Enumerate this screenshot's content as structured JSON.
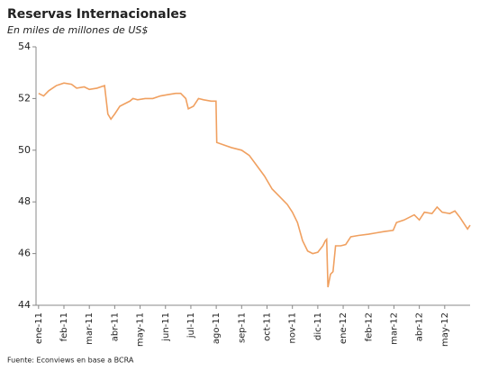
{
  "chart_data": {
    "type": "line",
    "title": "Reservas Internacionales",
    "subtitle": "En miles de millones de US$",
    "source": "Fuente: Econviews en base a BCRA",
    "x": [
      0,
      0.2,
      0.4,
      0.7,
      1.0,
      1.3,
      1.5,
      1.8,
      2.0,
      2.3,
      2.6,
      2.73,
      2.85,
      3.0,
      3.2,
      3.4,
      3.6,
      3.72,
      3.9,
      4.2,
      4.5,
      4.8,
      5.1,
      5.4,
      5.6,
      5.8,
      5.9,
      6.1,
      6.3,
      6.5,
      6.8,
      6.99,
      7.02,
      7.3,
      7.6,
      8.0,
      8.3,
      8.6,
      8.9,
      9.2,
      9.5,
      9.8,
      10.0,
      10.2,
      10.4,
      10.6,
      10.8,
      11.0,
      11.2,
      11.3,
      11.35,
      11.4,
      11.5,
      11.6,
      11.7,
      11.9,
      12.1,
      12.3,
      12.6,
      13.0,
      13.3,
      13.6,
      13.97,
      14.1,
      14.4,
      14.8,
      15.0,
      15.2,
      15.5,
      15.7,
      15.9,
      16.2,
      16.4,
      16.6,
      16.8,
      16.9,
      17.0
    ],
    "series": [
      {
        "name": "Reservas",
        "color": "#f0a060",
        "values": [
          52.2,
          52.1,
          52.3,
          52.5,
          52.6,
          52.55,
          52.4,
          52.45,
          52.35,
          52.4,
          52.5,
          51.4,
          51.2,
          51.4,
          51.7,
          51.8,
          51.9,
          52.0,
          51.95,
          52.0,
          52.0,
          52.1,
          52.15,
          52.2,
          52.2,
          52.0,
          51.6,
          51.7,
          52.0,
          51.95,
          51.9,
          51.9,
          50.3,
          50.2,
          50.1,
          50.0,
          49.8,
          49.4,
          49.0,
          48.5,
          48.2,
          47.9,
          47.6,
          47.2,
          46.5,
          46.1,
          46.0,
          46.05,
          46.3,
          46.5,
          46.55,
          44.7,
          45.2,
          45.3,
          46.3,
          46.3,
          46.35,
          46.65,
          46.7,
          46.75,
          46.8,
          46.85,
          46.9,
          47.2,
          47.3,
          47.5,
          47.3,
          47.6,
          47.55,
          47.8,
          47.6,
          47.55,
          47.65,
          47.4,
          47.1,
          46.95,
          47.1
        ]
      }
    ],
    "xlim": [
      -0.1,
      17
    ],
    "xticks": [
      {
        "value": 0,
        "label": "ene-11"
      },
      {
        "value": 1,
        "label": "feb-11"
      },
      {
        "value": 2,
        "label": "mar-11"
      },
      {
        "value": 3,
        "label": "abr-11"
      },
      {
        "value": 4,
        "label": "may-11"
      },
      {
        "value": 5,
        "label": "jun-11"
      },
      {
        "value": 6,
        "label": "jul-11"
      },
      {
        "value": 7,
        "label": "ago-11"
      },
      {
        "value": 8,
        "label": "sep-11"
      },
      {
        "value": 9,
        "label": "oct-11"
      },
      {
        "value": 10,
        "label": "nov-11"
      },
      {
        "value": 11,
        "label": "dic-11"
      },
      {
        "value": 12,
        "label": "ene-12"
      },
      {
        "value": 13,
        "label": "feb-12"
      },
      {
        "value": 14,
        "label": "mar-12"
      },
      {
        "value": 15,
        "label": "abr-12"
      },
      {
        "value": 16,
        "label": "may-12"
      }
    ],
    "ylim": [
      44,
      54
    ],
    "yticks": [
      44,
      46,
      48,
      50,
      52,
      54
    ],
    "grid": false
  }
}
